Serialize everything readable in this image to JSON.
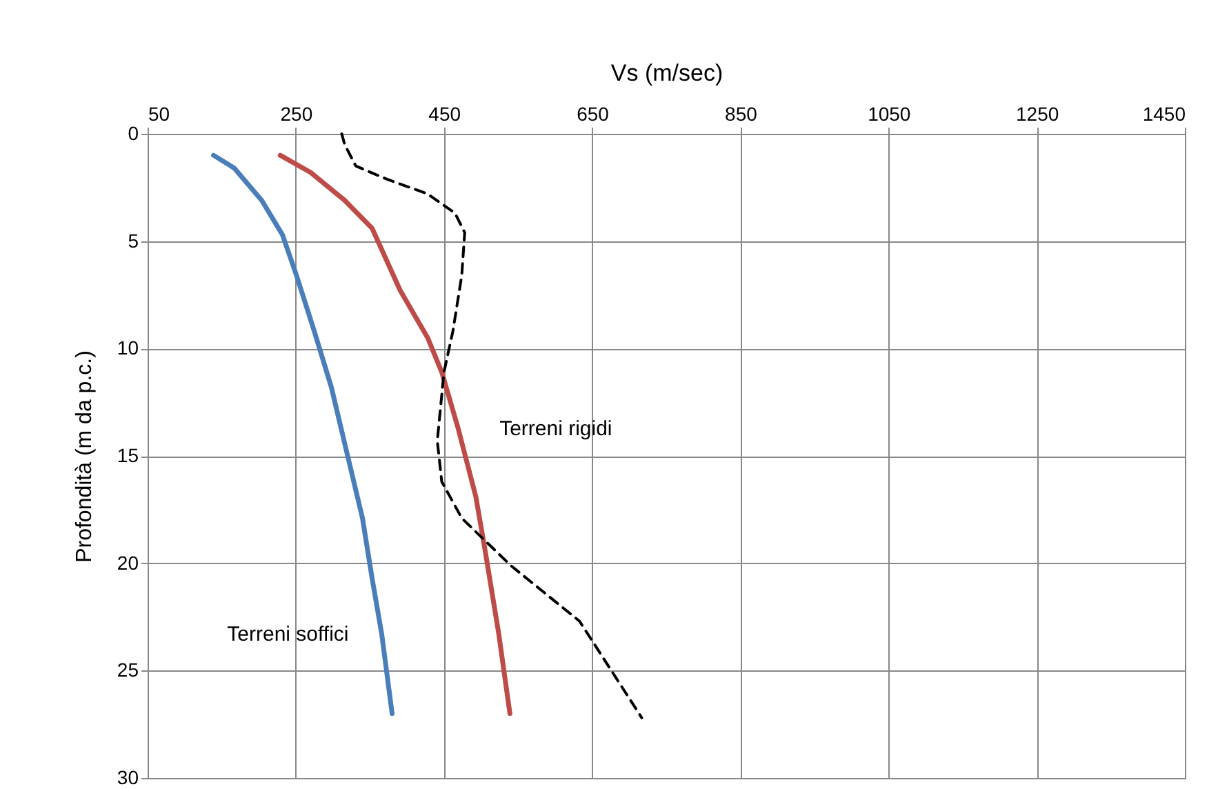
{
  "chart_data": {
    "type": "line",
    "xlabel": "Vs (m/sec)",
    "ylabel": "Profondità (m da p.c.)",
    "xlim": [
      50,
      1450
    ],
    "xticks": [
      50,
      250,
      450,
      650,
      850,
      1050,
      1250,
      1450
    ],
    "ylim": [
      30,
      0
    ],
    "yticks": [
      0,
      5,
      10,
      15,
      20,
      25,
      30
    ],
    "grid": true,
    "series": [
      {
        "name": "Terreni soffici",
        "color": "#4a7ebb",
        "x": [
          139,
          167,
          204,
          232,
          251,
          275,
          298,
          320,
          340,
          353,
          366,
          380
        ],
        "values": [
          1,
          1.6,
          3.1,
          4.7,
          6.6,
          9.2,
          11.8,
          15,
          17.9,
          20.7,
          23.3,
          27
        ]
      },
      {
        "name": "Terreni rigidi",
        "color": "#be4b48",
        "x": [
          229,
          270,
          316,
          353,
          391,
          428,
          447,
          469,
          493,
          506,
          524,
          539
        ],
        "values": [
          1,
          1.8,
          3.1,
          4.4,
          7.3,
          9.5,
          11.1,
          13.7,
          16.9,
          19.5,
          23.3,
          27
        ]
      },
      {
        "color": "#000000",
        "line_style": "dashed",
        "x": [
          312,
          316,
          331,
          372,
          428,
          465,
          478,
          474,
          462,
          450,
          441,
          447,
          474,
          540,
          633,
          717
        ],
        "values": [
          0,
          0.5,
          1.5,
          2.1,
          2.8,
          3.7,
          4.6,
          6.6,
          9.2,
          11.1,
          14.3,
          16.2,
          17.9,
          20.1,
          22.7,
          27.2
        ]
      }
    ]
  }
}
